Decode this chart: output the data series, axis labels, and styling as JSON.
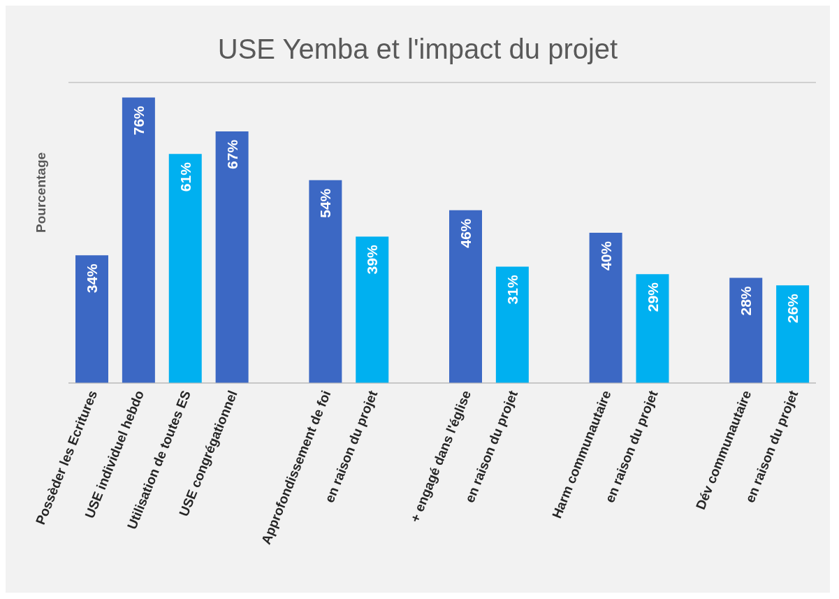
{
  "chart_data": {
    "type": "bar",
    "title": "USE Yemba et l'impact du projet",
    "ylabel": "Pourcentage",
    "categories": [
      "Possèder les Ecritures",
      "USE individuel hebdo",
      "Utilisation de toutes ES",
      "USE congrégationnel",
      null,
      "Approfondissement de foi",
      "en raison du projet",
      null,
      "+ engagé dans l'église",
      "en raison du projet",
      null,
      "Harm communautaire",
      "en raison du projet",
      null,
      "Dév communautaire",
      "en raison du projet"
    ],
    "values": [
      34,
      76,
      61,
      67,
      null,
      54,
      39,
      null,
      46,
      31,
      null,
      40,
      29,
      null,
      28,
      26
    ],
    "value_labels": [
      "34%",
      "76%",
      "61%",
      "67%",
      null,
      "54%",
      "39%",
      null,
      "46%",
      "31%",
      null,
      "40%",
      "29%",
      null,
      "28%",
      "26%"
    ],
    "colors": [
      "#3c68c4",
      "#3c68c4",
      "#00b0f0",
      "#3c68c4",
      null,
      "#3c68c4",
      "#00b0f0",
      null,
      "#3c68c4",
      "#00b0f0",
      null,
      "#3c68c4",
      "#00b0f0",
      null,
      "#3c68c4",
      "#00b0f0"
    ],
    "ylim": [
      0,
      80
    ],
    "grid": "y",
    "tick_labels": "x"
  }
}
